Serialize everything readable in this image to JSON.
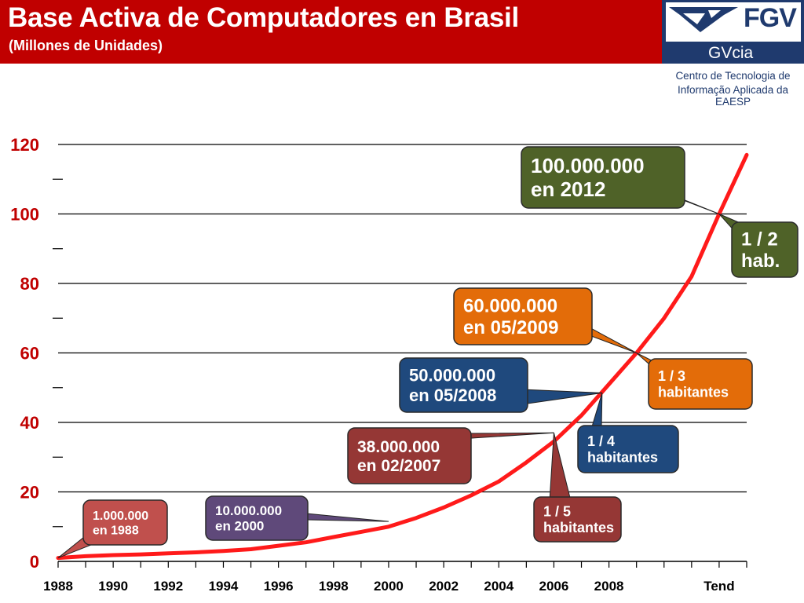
{
  "header": {
    "title": "Base Activa de Computadores en Brasil",
    "subtitle": "(Millones de Unidades)"
  },
  "logo": {
    "brand": "FGV",
    "unit": "GVcia",
    "line1": "Centro de Tecnologia de",
    "line2": "Informação Aplicada da EAESP",
    "icon": "fgv-bird-logo-icon"
  },
  "colors": {
    "header_bg": "#c00000",
    "brand_blue": "#1f3a6e",
    "curve": "#ff1a1a"
  },
  "chart_data": {
    "type": "line",
    "title": "Base Activa de Computadores en Brasil",
    "subtitle": "(Millones de Unidades)",
    "xlabel": "",
    "ylabel": "",
    "xlim": [
      1988,
      2013
    ],
    "ylim": [
      0,
      120
    ],
    "y_ticks": [
      0,
      20,
      40,
      60,
      80,
      100,
      120
    ],
    "x_tick_labels": [
      {
        "x": 1988,
        "label": "1988"
      },
      {
        "x": 1990,
        "label": "1990"
      },
      {
        "x": 1992,
        "label": "1992"
      },
      {
        "x": 1994,
        "label": "1994"
      },
      {
        "x": 1996,
        "label": "1996"
      },
      {
        "x": 1998,
        "label": "1998"
      },
      {
        "x": 2000,
        "label": "2000"
      },
      {
        "x": 2002,
        "label": "2002"
      },
      {
        "x": 2004,
        "label": "2004"
      },
      {
        "x": 2006,
        "label": "2006"
      },
      {
        "x": 2008,
        "label": "2008"
      },
      {
        "x": 2012,
        "label": "Tend"
      }
    ],
    "grid": true,
    "series": [
      {
        "color": "#ff1a1a",
        "points": [
          [
            1988,
            1
          ],
          [
            1989,
            1.5
          ],
          [
            1990,
            1.8
          ],
          [
            1991,
            2
          ],
          [
            1992,
            2.3
          ],
          [
            1993,
            2.6
          ],
          [
            1994,
            3
          ],
          [
            1995,
            3.5
          ],
          [
            1996,
            4.5
          ],
          [
            1997,
            5.5
          ],
          [
            1998,
            7
          ],
          [
            1999,
            8.5
          ],
          [
            2000,
            10
          ],
          [
            2001,
            12.5
          ],
          [
            2002,
            15.5
          ],
          [
            2003,
            19
          ],
          [
            2004,
            23
          ],
          [
            2005,
            28.5
          ],
          [
            2006,
            34.5
          ],
          [
            2007,
            42
          ],
          [
            2008,
            51
          ],
          [
            2009,
            60
          ],
          [
            2010,
            70
          ],
          [
            2011,
            82
          ],
          [
            2012,
            100
          ],
          [
            2013,
            117
          ]
        ]
      }
    ],
    "annotations": [
      {
        "label_lines": [
          "100.000.000",
          "en 2012"
        ],
        "point": [
          2012,
          100
        ],
        "color": "#4f6228"
      },
      {
        "label_lines": [
          "1 / 2",
          "hab."
        ],
        "point": [
          2012,
          100
        ],
        "color": "#4f6228"
      },
      {
        "label_lines": [
          "60.000.000",
          "en 05/2009"
        ],
        "point": [
          2009,
          60
        ],
        "color": "#e36c09"
      },
      {
        "label_lines": [
          "1 / 3",
          "habitantes"
        ],
        "point": [
          2009,
          60
        ],
        "color": "#e36c09"
      },
      {
        "label_lines": [
          "50.000.000",
          "en 05/2008"
        ],
        "point": [
          2007.75,
          48.5
        ],
        "color": "#1f497d"
      },
      {
        "label_lines": [
          "1 / 4",
          "habitantes"
        ],
        "point": [
          2007.75,
          48.5
        ],
        "color": "#1f497d"
      },
      {
        "label_lines": [
          "38.000.000",
          "en 02/2007"
        ],
        "point": [
          2006,
          37
        ],
        "color": "#953735"
      },
      {
        "label_lines": [
          "1 / 5",
          "habitantes"
        ],
        "point": [
          2006,
          37
        ],
        "color": "#953735"
      },
      {
        "label_lines": [
          "10.000.000",
          "en 2000"
        ],
        "point": [
          2000,
          11.5
        ],
        "color": "#5f497a"
      },
      {
        "label_lines": [
          "1.000.000",
          "en 1988"
        ],
        "point": [
          1988,
          1
        ],
        "color": "#c0504d"
      }
    ]
  }
}
